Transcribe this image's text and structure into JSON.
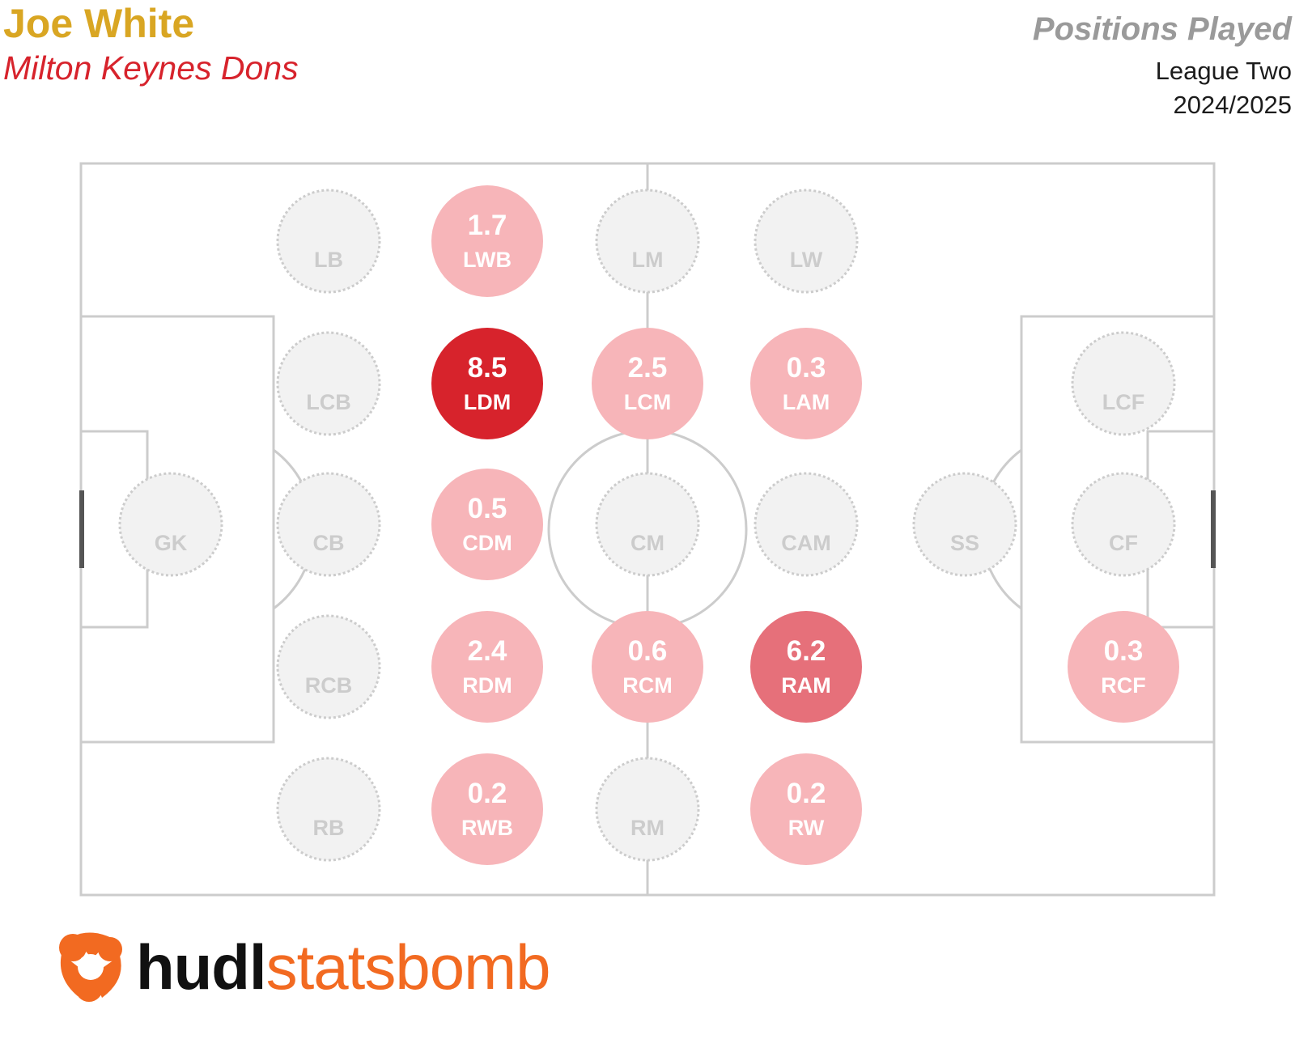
{
  "header": {
    "player_name": "Joe White",
    "team_name": "Milton Keynes Dons",
    "title": "Positions Played",
    "competition": "League Two",
    "season": "2024/2025"
  },
  "colors": {
    "player_name": "#d9a623",
    "team_name": "#d7232c",
    "high": "#d7232c",
    "mid": "#e6707a",
    "low": "#f7b5b9",
    "empty_fill": "#f2f2f2",
    "empty_stroke": "#cccccc",
    "empty_label": "#cccccc",
    "pitch_lines": "#cccccc"
  },
  "positions": [
    {
      "label": "LB",
      "value": null
    },
    {
      "label": "LWB",
      "value": "1.7"
    },
    {
      "label": "LM",
      "value": null
    },
    {
      "label": "LW",
      "value": null
    },
    {
      "label": "LCB",
      "value": null
    },
    {
      "label": "LDM",
      "value": "8.5"
    },
    {
      "label": "LCM",
      "value": "2.5"
    },
    {
      "label": "LAM",
      "value": "0.3"
    },
    {
      "label": "LCF",
      "value": null
    },
    {
      "label": "GK",
      "value": null
    },
    {
      "label": "CB",
      "value": null
    },
    {
      "label": "CDM",
      "value": "0.5"
    },
    {
      "label": "CM",
      "value": null
    },
    {
      "label": "CAM",
      "value": null
    },
    {
      "label": "SS",
      "value": null
    },
    {
      "label": "CF",
      "value": null
    },
    {
      "label": "RCB",
      "value": null
    },
    {
      "label": "RDM",
      "value": "2.4"
    },
    {
      "label": "RCM",
      "value": "0.6"
    },
    {
      "label": "RAM",
      "value": "6.2"
    },
    {
      "label": "RCF",
      "value": "0.3"
    },
    {
      "label": "RB",
      "value": null
    },
    {
      "label": "RWB",
      "value": "0.2"
    },
    {
      "label": "RM",
      "value": null
    },
    {
      "label": "RW",
      "value": "0.2"
    }
  ],
  "logo": {
    "icon": "statsbomb-logo-icon",
    "hudl": "hudl",
    "statsbomb": "statsbomb"
  }
}
